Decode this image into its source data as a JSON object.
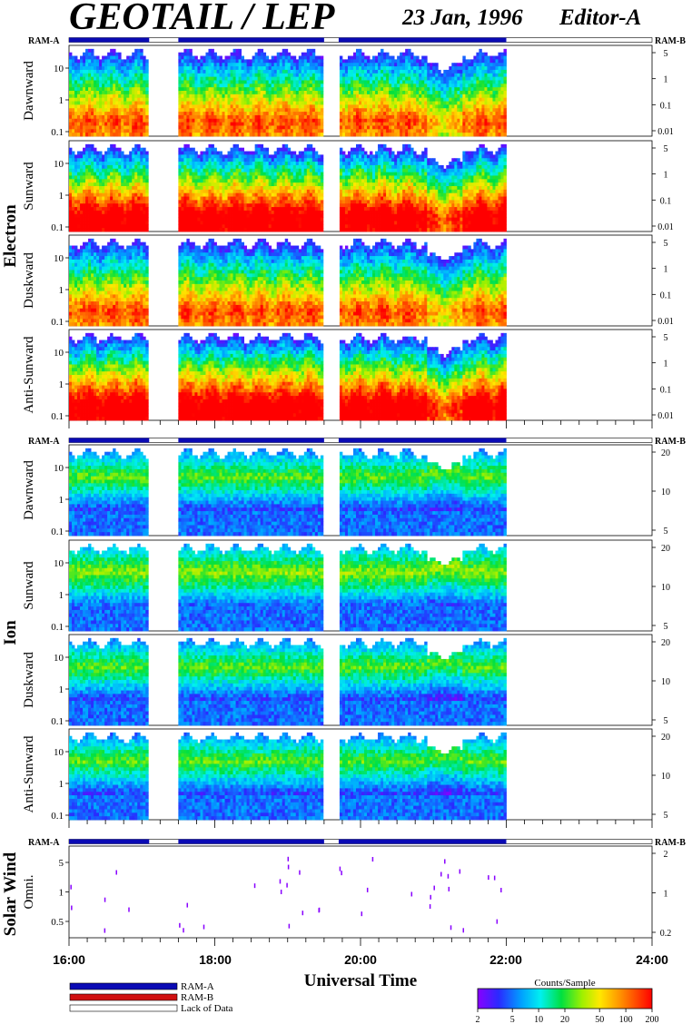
{
  "chart_data": {
    "type": "heatmap",
    "title": "GEOTAIL / LEP",
    "date": "23 Jan, 1996",
    "editor": "Editor-A",
    "xlabel": "Universal Time",
    "x_ticks": [
      "16:00",
      "18:00",
      "20:00",
      "22:00",
      "24:00"
    ],
    "x_range_hours": [
      16,
      24
    ],
    "ram_mode_label_left": "RAM-A",
    "ram_mode_label_right": "RAM-B",
    "data_intervals_hours": [
      [
        16.0,
        17.1
      ],
      [
        17.5,
        19.5
      ],
      [
        19.7,
        22.0
      ]
    ],
    "groups": [
      {
        "label": "Electron",
        "panels": [
          {
            "label": "Dawnward",
            "left_ticks": [
              "10",
              "1",
              "0.1"
            ],
            "right_ticks": [
              "5",
              "1",
              "0.1",
              "0.01"
            ],
            "peak": 0.75
          },
          {
            "label": "Sunward",
            "left_ticks": [
              "10",
              "1",
              "0.1"
            ],
            "right_ticks": [
              "5",
              "1",
              "0.1",
              "0.01"
            ],
            "peak": 0.95
          },
          {
            "label": "Duskward",
            "left_ticks": [
              "10",
              "1",
              "0.1"
            ],
            "right_ticks": [
              "5",
              "1",
              "0.1",
              "0.01"
            ],
            "peak": 0.75
          },
          {
            "label": "Anti-Sunward",
            "left_ticks": [
              "10",
              "1",
              "0.1"
            ],
            "right_ticks": [
              "5",
              "1",
              "0.1",
              "0.01"
            ],
            "peak": 0.95
          }
        ]
      },
      {
        "label": "Ion",
        "panels": [
          {
            "label": "Dawnward",
            "left_ticks": [
              "10",
              "1",
              "0.1"
            ],
            "right_ticks": [
              "20",
              "10",
              "5"
            ],
            "peak": 0.55
          },
          {
            "label": "Sunward",
            "left_ticks": [
              "10",
              "1",
              "0.1"
            ],
            "right_ticks": [
              "20",
              "10",
              "5"
            ],
            "peak": 0.6
          },
          {
            "label": "Duskward",
            "left_ticks": [
              "10",
              "1",
              "0.1"
            ],
            "right_ticks": [
              "20",
              "10",
              "5"
            ],
            "peak": 0.55
          },
          {
            "label": "Anti-Sunward",
            "left_ticks": [
              "10",
              "1",
              "0.1"
            ],
            "right_ticks": [
              "20",
              "10",
              "5"
            ],
            "peak": 0.55
          }
        ]
      },
      {
        "label": "Solar Wind",
        "panels": [
          {
            "label": "Omni.",
            "left_ticks": [
              "5",
              "1",
              "0.5"
            ],
            "right_ticks": [
              "2",
              "1",
              "0.2"
            ],
            "peak": 0.1
          }
        ]
      }
    ],
    "legend": {
      "items": [
        {
          "label": "RAM-A",
          "color": "#0a0ab4"
        },
        {
          "label": "RAM-B",
          "color": "#d01010"
        },
        {
          "label": "Lack of Data",
          "color": "#ffffff"
        }
      ]
    },
    "colorbar": {
      "label": "Counts/Sample",
      "ticks": [
        "2",
        "5",
        "10",
        "20",
        "50",
        "100",
        "200"
      ],
      "scale": "log"
    }
  }
}
